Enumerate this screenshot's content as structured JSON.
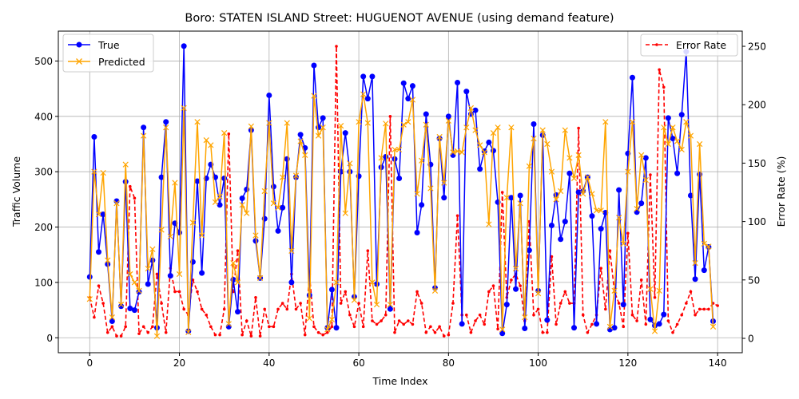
{
  "chart_data": {
    "type": "line",
    "title": "Boro: STATEN ISLAND Street: HUGUENOT AVENUE (using demand feature)",
    "xlabel": "Time Index",
    "ylabel": "Traffic Volume",
    "y2label": "Error Rate (%)",
    "xlim": [
      -7,
      145.5
    ],
    "ylim": [
      -27,
      554
    ],
    "y2lim": [
      -12.3,
      263
    ],
    "xticks": [
      0,
      20,
      40,
      60,
      80,
      100,
      120,
      140
    ],
    "yticks": [
      0,
      100,
      200,
      300,
      400,
      500
    ],
    "y2ticks": [
      0,
      50,
      100,
      150,
      200,
      250
    ],
    "grid": true,
    "legend_left_placement": "upper-left",
    "legend_right_placement": "upper-right",
    "series": [
      {
        "name": "True",
        "axis": "left",
        "color": "#0000ff",
        "marker": "circle",
        "values": [
          110,
          363,
          155,
          223,
          133,
          30,
          247,
          57,
          282,
          53,
          50,
          83,
          380,
          97,
          140,
          18,
          290,
          390,
          112,
          207,
          190,
          527,
          12,
          137,
          283,
          117,
          288,
          313,
          290,
          240,
          288,
          20,
          105,
          47,
          252,
          268,
          375,
          175,
          108,
          215,
          438,
          273,
          193,
          235,
          323,
          100,
          290,
          367,
          343,
          77,
          492,
          380,
          397,
          18,
          87,
          18,
          300,
          370,
          300,
          74,
          292,
          472,
          432,
          472,
          97,
          308,
          327,
          52,
          323,
          288,
          460,
          432,
          455,
          190,
          240,
          404,
          313,
          90,
          360,
          253,
          400,
          330,
          461,
          25,
          445,
          404,
          411,
          305,
          337,
          353,
          338,
          245,
          8,
          60,
          253,
          88,
          257,
          17,
          158,
          386,
          85,
          366,
          32,
          203,
          258,
          178,
          210,
          297,
          18,
          263,
          265,
          290,
          220,
          25,
          197,
          226,
          15,
          18,
          267,
          60,
          333,
          470,
          227,
          243,
          325,
          33,
          22,
          25,
          42,
          397,
          360,
          297,
          403,
          517,
          257,
          106,
          295,
          122,
          164,
          30
        ]
      },
      {
        "name": "Predicted",
        "axis": "left",
        "color": "#ffa500",
        "marker": "x",
        "values": [
          70,
          300,
          223,
          298,
          140,
          37,
          243,
          60,
          313,
          115,
          100,
          85,
          365,
          125,
          160,
          3,
          195,
          380,
          183,
          280,
          115,
          415,
          10,
          208,
          390,
          185,
          357,
          348,
          245,
          255,
          370,
          25,
          135,
          100,
          240,
          225,
          382,
          185,
          108,
          265,
          388,
          243,
          235,
          290,
          388,
          157,
          293,
          355,
          330,
          35,
          437,
          365,
          380,
          15,
          33,
          100,
          383,
          225,
          315,
          68,
          390,
          440,
          388,
          100,
          60,
          325,
          387,
          60,
          340,
          340,
          385,
          390,
          430,
          260,
          320,
          385,
          270,
          85,
          363,
          280,
          392,
          335,
          337,
          335,
          380,
          415,
          375,
          348,
          335,
          205,
          370,
          380,
          15,
          253,
          380,
          125,
          243,
          37,
          310,
          360,
          80,
          375,
          350,
          300,
          250,
          265,
          375,
          325,
          288,
          330,
          260,
          290,
          260,
          230,
          230,
          390,
          20,
          85,
          217,
          170,
          300,
          390,
          233,
          330,
          285,
          88,
          12,
          85,
          380,
          350,
          380,
          355,
          340,
          390,
          365,
          135,
          350,
          170,
          165,
          20
        ]
      },
      {
        "name": "Error Rate",
        "axis": "right",
        "color": "#ff0000",
        "style": "dashed",
        "marker": "dot",
        "values": [
          35,
          18,
          45,
          30,
          5,
          10,
          2,
          2,
          10,
          130,
          120,
          4,
          10,
          5,
          10,
          55,
          30,
          5,
          60,
          40,
          40,
          25,
          20,
          50,
          40,
          25,
          20,
          10,
          3,
          3,
          25,
          175,
          40,
          75,
          3,
          15,
          2,
          35,
          2,
          25,
          10,
          10,
          25,
          30,
          25,
          55,
          25,
          30,
          3,
          55,
          10,
          5,
          3,
          5,
          10,
          250,
          30,
          40,
          20,
          10,
          30,
          10,
          75,
          15,
          12,
          15,
          20,
          190,
          5,
          15,
          12,
          15,
          12,
          40,
          30,
          5,
          10,
          5,
          10,
          2,
          3,
          30,
          105,
          20,
          20,
          5,
          15,
          20,
          12,
          40,
          45,
          8,
          125,
          35,
          50,
          55,
          45,
          15,
          100,
          20,
          25,
          5,
          5,
          70,
          12,
          30,
          40,
          30,
          30,
          180,
          20,
          5,
          12,
          20,
          60,
          25,
          75,
          40,
          30,
          10,
          90,
          20,
          15,
          50,
          12,
          140,
          35,
          230,
          215,
          15,
          5,
          12,
          20,
          30,
          40,
          20,
          25,
          25,
          25,
          30,
          28
        ]
      }
    ]
  }
}
